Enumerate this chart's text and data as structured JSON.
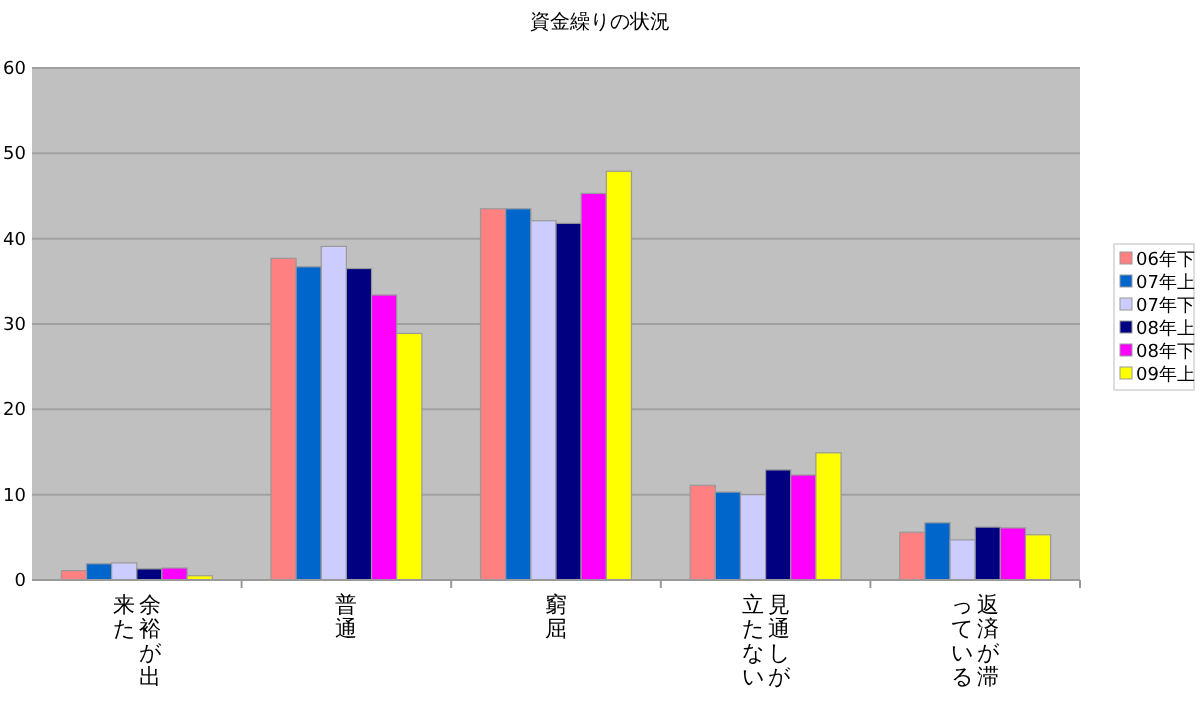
{
  "chart_data": {
    "type": "bar",
    "title": "資金繰りの状況",
    "categories": [
      "余裕が出来た",
      "普通",
      "窮屈",
      "見通しが立たない",
      "返済が滞っている"
    ],
    "series": [
      {
        "name": "06年下",
        "color": "#ff8080",
        "values": [
          1.1,
          37.7,
          43.5,
          11.1,
          5.6
        ]
      },
      {
        "name": "07年上",
        "color": "#0066cc",
        "values": [
          1.9,
          36.7,
          43.5,
          10.3,
          6.7
        ]
      },
      {
        "name": "07年下",
        "color": "#ccccff",
        "values": [
          2.0,
          39.1,
          42.1,
          10.0,
          4.7
        ]
      },
      {
        "name": "08年上",
        "color": "#000080",
        "values": [
          1.3,
          36.5,
          41.8,
          12.9,
          6.2
        ]
      },
      {
        "name": "08年下",
        "color": "#ff00ff",
        "values": [
          1.4,
          33.4,
          45.3,
          12.3,
          6.1
        ]
      },
      {
        "name": "09年上",
        "color": "#ffff00",
        "values": [
          0.5,
          28.9,
          47.9,
          14.9,
          5.3
        ]
      }
    ],
    "ylim": [
      0,
      60
    ],
    "yticks": [
      0,
      10,
      20,
      30,
      40,
      50,
      60
    ],
    "grid": "y",
    "legend": "right"
  }
}
